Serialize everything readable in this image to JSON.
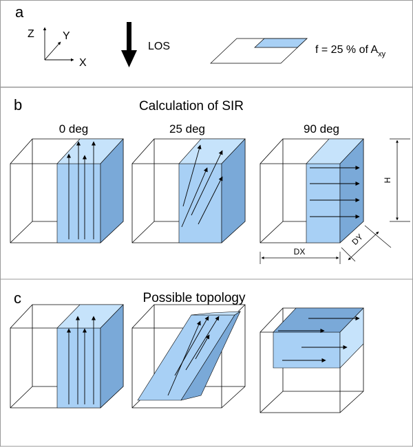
{
  "panels": {
    "a": {
      "letter": "a",
      "axes": {
        "z": "Z",
        "y": "Y",
        "x": "X"
      },
      "los_label": "LOS",
      "fraction": {
        "prefix": "f = 25 % of A",
        "subscript": "xy"
      }
    },
    "b": {
      "letter": "b",
      "title": "Calculation of SIR",
      "angles": [
        "0 deg",
        "25 deg",
        "90 deg"
      ],
      "dims": {
        "h": "H",
        "dx": "DX",
        "dy": "DY"
      }
    },
    "c": {
      "letter": "c",
      "title": "Possible topology"
    }
  },
  "colors": {
    "fill": "#a8d0f5",
    "fill_top": "#c6e3fb",
    "fill_side": "#7aa9d8",
    "panel_border": "#999999"
  }
}
